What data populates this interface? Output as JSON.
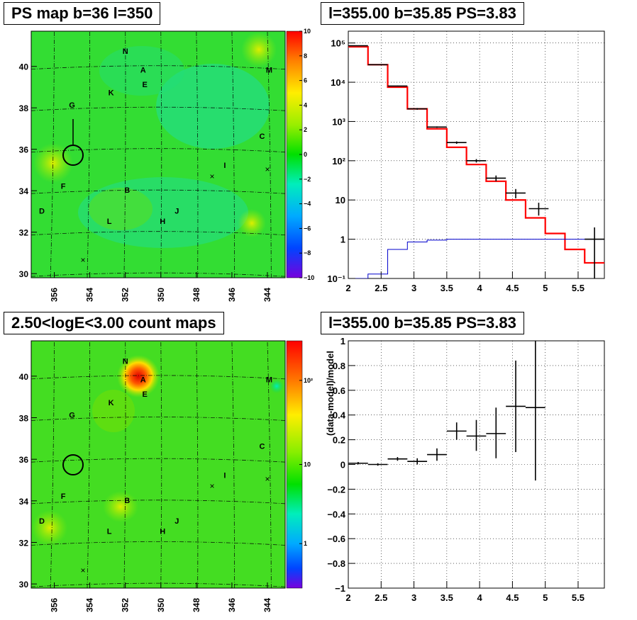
{
  "chart_data": [
    {
      "type": "heatmap",
      "title": "PS map b=36 l=350",
      "x_ticks": [
        "356",
        "354",
        "352",
        "350",
        "348",
        "346",
        "344"
      ],
      "y_ticks": [
        "40",
        "38",
        "36",
        "34",
        "32",
        "30"
      ],
      "xlim": [
        357.3,
        343.0
      ],
      "ylim": [
        29.8,
        41.7
      ],
      "colorbar": {
        "min": -10,
        "max": 10,
        "ticks": [
          "10",
          "8",
          "6",
          "4",
          "2",
          "0",
          "−2",
          "−4",
          "−6",
          "−8",
          "−10"
        ]
      },
      "sources": [
        {
          "label": "N",
          "l": 352.0,
          "b": 40.6
        },
        {
          "label": "A",
          "l": 351.0,
          "b": 39.7
        },
        {
          "label": "M",
          "l": 343.9,
          "b": 39.7
        },
        {
          "label": "E",
          "l": 350.9,
          "b": 39.0
        },
        {
          "label": "K",
          "l": 352.8,
          "b": 38.6
        },
        {
          "label": "G",
          "l": 355.0,
          "b": 38.0
        },
        {
          "label": "C",
          "l": 344.3,
          "b": 36.5
        },
        {
          "label": "I",
          "l": 346.4,
          "b": 35.1
        },
        {
          "label": "F",
          "l": 355.5,
          "b": 34.1
        },
        {
          "label": "B",
          "l": 351.9,
          "b": 33.9
        },
        {
          "label": "D",
          "l": 356.7,
          "b": 32.9
        },
        {
          "label": "J",
          "l": 349.1,
          "b": 32.9
        },
        {
          "label": "L",
          "l": 352.9,
          "b": 32.4
        },
        {
          "label": "H",
          "l": 349.9,
          "b": 32.4
        }
      ]
    },
    {
      "type": "line",
      "title": "l=355.00 b=35.85 PS=3.83",
      "xlim": [
        2,
        5.9
      ],
      "ylim": [
        0.1,
        200000
      ],
      "y_scale": "log",
      "x_ticks": [
        "2",
        "2.5",
        "3",
        "3.5",
        "4",
        "4.5",
        "5",
        "5.5"
      ],
      "y_ticks": [
        "10⁻¹",
        "1",
        "10",
        "10²",
        "10³",
        "10⁴",
        "10⁵"
      ],
      "grid": true,
      "series": [
        {
          "color": "#ff0000",
          "bins": [
            2.0,
            2.3,
            2.6,
            2.9,
            3.2,
            3.5,
            3.8,
            4.1,
            4.4,
            4.7,
            5.0,
            5.3,
            5.6,
            5.9
          ],
          "values": [
            80000,
            28000,
            7500,
            2100,
            650,
            220,
            80,
            30,
            10,
            3.5,
            1.4,
            0.55,
            0.25
          ]
        },
        {
          "color": "#0000cc",
          "bins": [
            2.0,
            2.3,
            2.6,
            2.9,
            3.2,
            3.5,
            3.8,
            4.1,
            4.4,
            4.7,
            5.0,
            5.3,
            5.6,
            5.9
          ],
          "values": [
            0.1,
            0.13,
            0.55,
            0.85,
            0.95,
            1.0,
            1.0,
            1.0,
            1.0,
            1.0,
            1.0,
            1.0,
            1.0
          ]
        },
        {
          "color": "#000000",
          "points": [
            {
              "x": 2.15,
              "y": 85000,
              "xerr": 0.15,
              "ylo": 85000,
              "yhi": 85000
            },
            {
              "x": 2.45,
              "y": 28000,
              "xerr": 0.15,
              "ylo": 28000,
              "yhi": 28000
            },
            {
              "x": 2.75,
              "y": 8000,
              "xerr": 0.15,
              "ylo": 7800,
              "yhi": 8200
            },
            {
              "x": 3.05,
              "y": 2100,
              "xerr": 0.15,
              "ylo": 2000,
              "yhi": 2200
            },
            {
              "x": 3.35,
              "y": 720,
              "xerr": 0.15,
              "ylo": 690,
              "yhi": 750
            },
            {
              "x": 3.65,
              "y": 290,
              "xerr": 0.15,
              "ylo": 270,
              "yhi": 310
            },
            {
              "x": 3.95,
              "y": 100,
              "xerr": 0.15,
              "ylo": 90,
              "yhi": 110
            },
            {
              "x": 4.25,
              "y": 36,
              "xerr": 0.15,
              "ylo": 30,
              "yhi": 42
            },
            {
              "x": 4.55,
              "y": 15,
              "xerr": 0.15,
              "ylo": 11,
              "yhi": 19
            },
            {
              "x": 4.9,
              "y": 6,
              "xerr": 0.15,
              "ylo": 4,
              "yhi": 8.5
            },
            {
              "x": 5.75,
              "y": 1,
              "xerr": 0.15,
              "ylo": 0.1,
              "yhi": 2
            }
          ]
        }
      ]
    },
    {
      "type": "heatmap",
      "title": "2.50<logE<3.00 count maps",
      "x_ticks": [
        "356",
        "354",
        "352",
        "350",
        "348",
        "346",
        "344"
      ],
      "y_ticks": [
        "40",
        "38",
        "36",
        "34",
        "32",
        "30"
      ],
      "xlim": [
        357.3,
        343.0
      ],
      "ylim": [
        29.8,
        41.7
      ],
      "colorbar": {
        "scale": "log",
        "ticks": [
          "10²",
          "10",
          "1"
        ]
      },
      "sources": [
        {
          "label": "N",
          "l": 352.0,
          "b": 40.6
        },
        {
          "label": "A",
          "l": 351.0,
          "b": 39.7
        },
        {
          "label": "M",
          "l": 343.9,
          "b": 39.7
        },
        {
          "label": "E",
          "l": 350.9,
          "b": 39.0
        },
        {
          "label": "K",
          "l": 352.8,
          "b": 38.6
        },
        {
          "label": "G",
          "l": 355.0,
          "b": 38.0
        },
        {
          "label": "C",
          "l": 344.3,
          "b": 36.5
        },
        {
          "label": "I",
          "l": 346.4,
          "b": 35.1
        },
        {
          "label": "F",
          "l": 355.5,
          "b": 34.1
        },
        {
          "label": "B",
          "l": 351.9,
          "b": 33.9
        },
        {
          "label": "D",
          "l": 356.7,
          "b": 32.9
        },
        {
          "label": "J",
          "l": 349.1,
          "b": 32.9
        },
        {
          "label": "L",
          "l": 352.9,
          "b": 32.4
        },
        {
          "label": "H",
          "l": 349.9,
          "b": 32.4
        }
      ]
    },
    {
      "type": "scatter",
      "title": "l=355.00 b=35.85 PS=3.83",
      "ylabel": "(data-model)/model",
      "xlim": [
        2,
        5.9
      ],
      "ylim": [
        -1,
        1
      ],
      "x_ticks": [
        "2",
        "2.5",
        "3",
        "3.5",
        "4",
        "4.5",
        "5",
        "5.5"
      ],
      "y_ticks": [
        "1",
        "0.8",
        "0.6",
        "0.4",
        "0.2",
        "0",
        "−0.2",
        "−0.4",
        "−0.6",
        "−0.8",
        "−1"
      ],
      "grid": true,
      "points": [
        {
          "x": 2.15,
          "y": 0.01,
          "xerr": 0.15,
          "ylo": 0.0,
          "yhi": 0.02
        },
        {
          "x": 2.45,
          "y": 0.0,
          "xerr": 0.15,
          "ylo": -0.01,
          "yhi": 0.01
        },
        {
          "x": 2.75,
          "y": 0.045,
          "xerr": 0.15,
          "ylo": 0.03,
          "yhi": 0.06
        },
        {
          "x": 3.05,
          "y": 0.025,
          "xerr": 0.15,
          "ylo": 0.0,
          "yhi": 0.05
        },
        {
          "x": 3.35,
          "y": 0.08,
          "xerr": 0.15,
          "ylo": 0.03,
          "yhi": 0.13
        },
        {
          "x": 3.65,
          "y": 0.27,
          "xerr": 0.15,
          "ylo": 0.2,
          "yhi": 0.34
        },
        {
          "x": 3.95,
          "y": 0.23,
          "xerr": 0.15,
          "ylo": 0.11,
          "yhi": 0.36
        },
        {
          "x": 4.25,
          "y": 0.25,
          "xerr": 0.15,
          "ylo": 0.05,
          "yhi": 0.46
        },
        {
          "x": 4.55,
          "y": 0.47,
          "xerr": 0.15,
          "ylo": 0.1,
          "yhi": 0.84
        },
        {
          "x": 4.85,
          "y": 0.46,
          "xerr": 0.15,
          "ylo": -0.13,
          "yhi": 1.0
        }
      ]
    }
  ],
  "colors": {
    "frame": "#000000",
    "model": "#ff0000",
    "background_model": "#0000cc",
    "data": "#000000"
  }
}
